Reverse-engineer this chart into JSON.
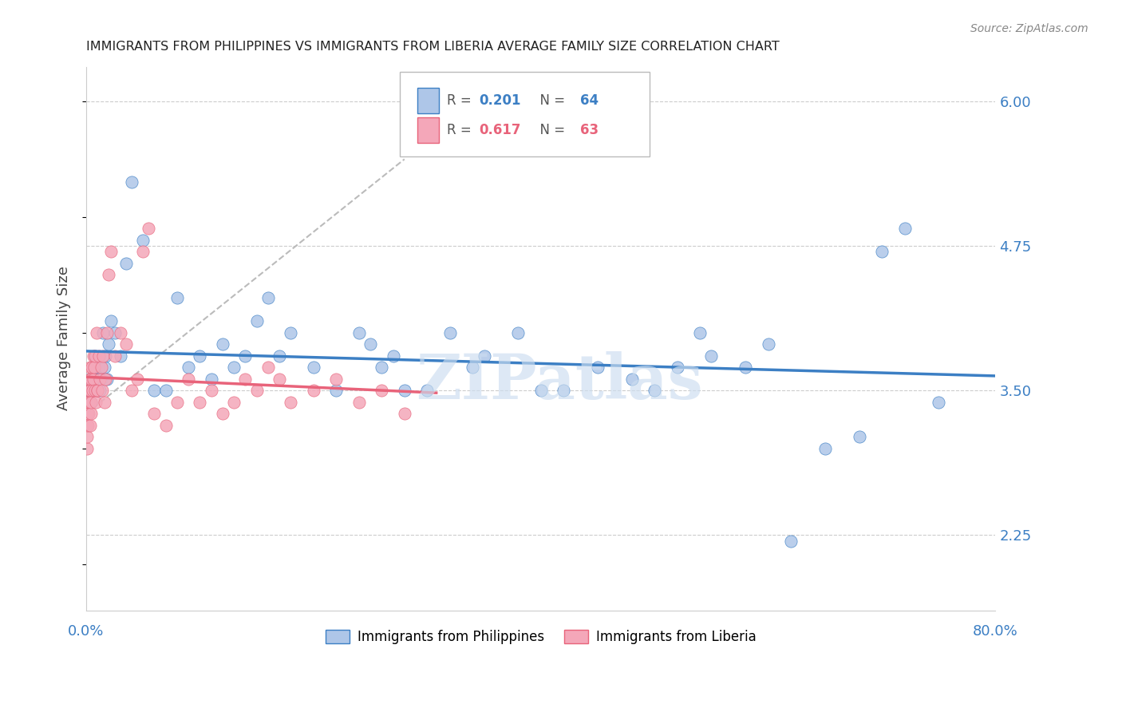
{
  "title": "IMMIGRANTS FROM PHILIPPINES VS IMMIGRANTS FROM LIBERIA AVERAGE FAMILY SIZE CORRELATION CHART",
  "source": "Source: ZipAtlas.com",
  "ylabel": "Average Family Size",
  "yticks": [
    2.25,
    3.5,
    4.75,
    6.0
  ],
  "xmin": 0.0,
  "xmax": 80.0,
  "ymin": 1.6,
  "ymax": 6.3,
  "philippines_R": 0.201,
  "philippines_N": 64,
  "liberia_R": 0.617,
  "liberia_N": 63,
  "philippines_color": "#aec6e8",
  "liberia_color": "#f4a7b9",
  "trend_philippines_color": "#3c7fc4",
  "trend_liberia_color": "#e8637a",
  "axis_label_color": "#3c7fc4",
  "watermark": "ZIPatlas",
  "philippines_x": [
    0.2,
    0.3,
    0.4,
    0.5,
    0.6,
    0.7,
    0.8,
    0.9,
    1.0,
    1.1,
    1.2,
    1.3,
    1.5,
    1.6,
    1.7,
    1.8,
    2.0,
    2.2,
    2.5,
    3.0,
    3.5,
    4.0,
    5.0,
    6.0,
    7.0,
    8.0,
    9.0,
    10.0,
    11.0,
    12.0,
    13.0,
    14.0,
    15.0,
    16.0,
    17.0,
    18.0,
    20.0,
    22.0,
    24.0,
    25.0,
    26.0,
    27.0,
    28.0,
    30.0,
    32.0,
    34.0,
    35.0,
    38.0,
    40.0,
    42.0,
    45.0,
    48.0,
    50.0,
    52.0,
    54.0,
    55.0,
    58.0,
    60.0,
    62.0,
    65.0,
    68.0,
    70.0,
    72.0,
    75.0
  ],
  "philippines_y": [
    3.5,
    3.6,
    3.4,
    3.5,
    3.7,
    3.6,
    3.8,
    3.5,
    3.6,
    3.7,
    3.5,
    3.6,
    4.0,
    3.7,
    3.8,
    3.6,
    3.9,
    4.1,
    4.0,
    3.8,
    4.6,
    5.3,
    4.8,
    3.5,
    3.5,
    4.3,
    3.7,
    3.8,
    3.6,
    3.9,
    3.7,
    3.8,
    4.1,
    4.3,
    3.8,
    4.0,
    3.7,
    3.5,
    4.0,
    3.9,
    3.7,
    3.8,
    3.5,
    3.5,
    4.0,
    3.7,
    3.8,
    4.0,
    3.5,
    3.5,
    3.7,
    3.6,
    3.5,
    3.7,
    4.0,
    3.8,
    3.7,
    3.9,
    2.2,
    3.0,
    3.1,
    4.7,
    4.9,
    3.4
  ],
  "liberia_x": [
    0.05,
    0.08,
    0.1,
    0.12,
    0.15,
    0.18,
    0.2,
    0.22,
    0.25,
    0.28,
    0.3,
    0.32,
    0.35,
    0.38,
    0.4,
    0.42,
    0.45,
    0.5,
    0.55,
    0.6,
    0.65,
    0.7,
    0.75,
    0.8,
    0.85,
    0.9,
    0.95,
    1.0,
    1.1,
    1.2,
    1.3,
    1.4,
    1.5,
    1.6,
    1.7,
    1.8,
    2.0,
    2.2,
    2.5,
    3.0,
    3.5,
    4.0,
    4.5,
    5.0,
    5.5,
    6.0,
    7.0,
    8.0,
    9.0,
    10.0,
    11.0,
    12.0,
    13.0,
    14.0,
    15.0,
    16.0,
    17.0,
    18.0,
    20.0,
    22.0,
    24.0,
    26.0,
    28.0
  ],
  "liberia_y": [
    3.2,
    3.0,
    3.1,
    3.3,
    3.2,
    3.4,
    3.5,
    3.3,
    3.6,
    3.4,
    3.5,
    3.2,
    3.7,
    3.5,
    3.3,
    3.6,
    3.4,
    3.7,
    3.5,
    3.8,
    3.6,
    3.7,
    3.5,
    3.8,
    3.4,
    4.0,
    3.5,
    3.5,
    3.8,
    3.6,
    3.7,
    3.5,
    3.8,
    3.4,
    3.6,
    4.0,
    4.5,
    4.7,
    3.8,
    4.0,
    3.9,
    3.5,
    3.6,
    4.7,
    4.9,
    3.3,
    3.2,
    3.4,
    3.6,
    3.4,
    3.5,
    3.3,
    3.4,
    3.6,
    3.5,
    3.7,
    3.6,
    3.4,
    3.5,
    3.6,
    3.4,
    3.5,
    3.3
  ]
}
